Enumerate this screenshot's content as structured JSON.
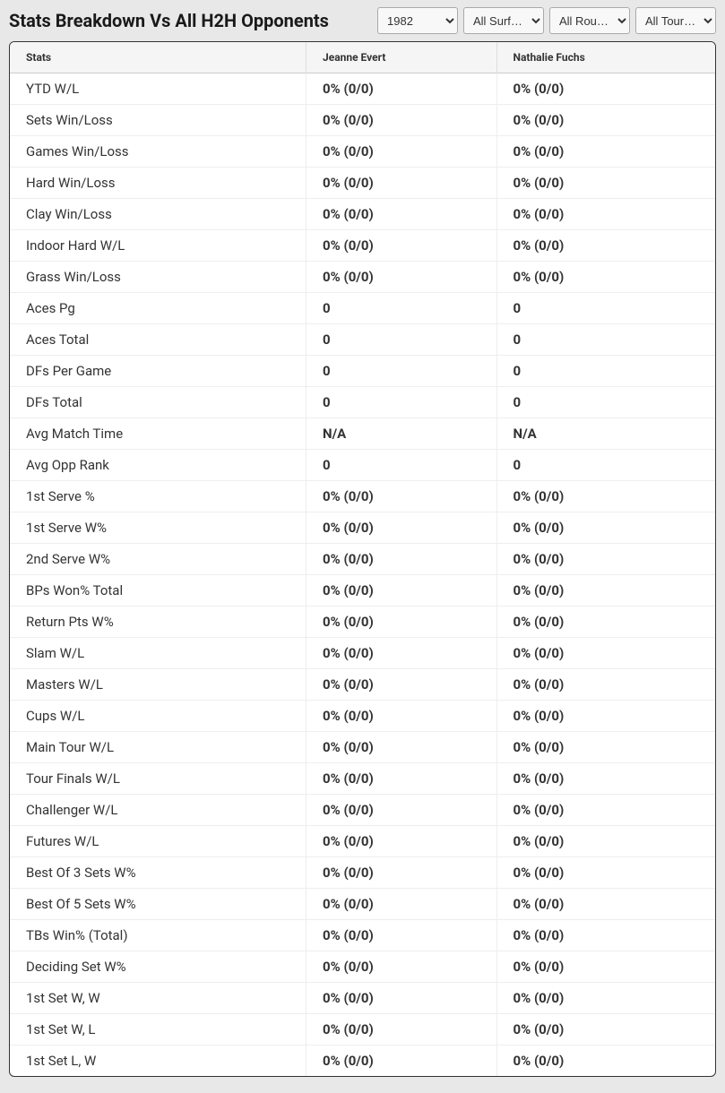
{
  "header": {
    "title": "Stats Breakdown Vs All H2H Opponents"
  },
  "filters": {
    "year": {
      "selected": "1982",
      "options": [
        "1982"
      ]
    },
    "surface": {
      "selected": "All Surf…",
      "options": [
        "All Surf…"
      ]
    },
    "round": {
      "selected": "All Rou…",
      "options": [
        "All Rou…"
      ]
    },
    "tour": {
      "selected": "All Tour…",
      "options": [
        "All Tour…"
      ]
    }
  },
  "table": {
    "columns": [
      "Stats",
      "Jeanne Evert",
      "Nathalie Fuchs"
    ],
    "rows": [
      {
        "stat": "YTD W/L",
        "p1": "0% (0/0)",
        "p2": "0% (0/0)"
      },
      {
        "stat": "Sets Win/Loss",
        "p1": "0% (0/0)",
        "p2": "0% (0/0)"
      },
      {
        "stat": "Games Win/Loss",
        "p1": "0% (0/0)",
        "p2": "0% (0/0)"
      },
      {
        "stat": "Hard Win/Loss",
        "p1": "0% (0/0)",
        "p2": "0% (0/0)"
      },
      {
        "stat": "Clay Win/Loss",
        "p1": "0% (0/0)",
        "p2": "0% (0/0)"
      },
      {
        "stat": "Indoor Hard W/L",
        "p1": "0% (0/0)",
        "p2": "0% (0/0)"
      },
      {
        "stat": "Grass Win/Loss",
        "p1": "0% (0/0)",
        "p2": "0% (0/0)"
      },
      {
        "stat": "Aces Pg",
        "p1": "0",
        "p2": "0"
      },
      {
        "stat": "Aces Total",
        "p1": "0",
        "p2": "0"
      },
      {
        "stat": "DFs Per Game",
        "p1": "0",
        "p2": "0"
      },
      {
        "stat": "DFs Total",
        "p1": "0",
        "p2": "0"
      },
      {
        "stat": "Avg Match Time",
        "p1": "N/A",
        "p2": "N/A"
      },
      {
        "stat": "Avg Opp Rank",
        "p1": "0",
        "p2": "0"
      },
      {
        "stat": "1st Serve %",
        "p1": "0% (0/0)",
        "p2": "0% (0/0)"
      },
      {
        "stat": "1st Serve W%",
        "p1": "0% (0/0)",
        "p2": "0% (0/0)"
      },
      {
        "stat": "2nd Serve W%",
        "p1": "0% (0/0)",
        "p2": "0% (0/0)"
      },
      {
        "stat": "BPs Won% Total",
        "p1": "0% (0/0)",
        "p2": "0% (0/0)"
      },
      {
        "stat": "Return Pts W%",
        "p1": "0% (0/0)",
        "p2": "0% (0/0)"
      },
      {
        "stat": "Slam W/L",
        "p1": "0% (0/0)",
        "p2": "0% (0/0)"
      },
      {
        "stat": "Masters W/L",
        "p1": "0% (0/0)",
        "p2": "0% (0/0)"
      },
      {
        "stat": "Cups W/L",
        "p1": "0% (0/0)",
        "p2": "0% (0/0)"
      },
      {
        "stat": "Main Tour W/L",
        "p1": "0% (0/0)",
        "p2": "0% (0/0)"
      },
      {
        "stat": "Tour Finals W/L",
        "p1": "0% (0/0)",
        "p2": "0% (0/0)"
      },
      {
        "stat": "Challenger W/L",
        "p1": "0% (0/0)",
        "p2": "0% (0/0)"
      },
      {
        "stat": "Futures W/L",
        "p1": "0% (0/0)",
        "p2": "0% (0/0)"
      },
      {
        "stat": "Best Of 3 Sets W%",
        "p1": "0% (0/0)",
        "p2": "0% (0/0)"
      },
      {
        "stat": "Best Of 5 Sets W%",
        "p1": "0% (0/0)",
        "p2": "0% (0/0)"
      },
      {
        "stat": "TBs Win% (Total)",
        "p1": "0% (0/0)",
        "p2": "0% (0/0)"
      },
      {
        "stat": "Deciding Set W%",
        "p1": "0% (0/0)",
        "p2": "0% (0/0)"
      },
      {
        "stat": "1st Set W, W",
        "p1": "0% (0/0)",
        "p2": "0% (0/0)"
      },
      {
        "stat": "1st Set W, L",
        "p1": "0% (0/0)",
        "p2": "0% (0/0)"
      },
      {
        "stat": "1st Set L, W",
        "p1": "0% (0/0)",
        "p2": "0% (0/0)"
      }
    ]
  },
  "styles": {
    "background_color": "#e8e8e8",
    "table_border_color": "#333",
    "header_bg": "#f5f5f5",
    "row_border_color": "#eee",
    "text_color": "#333",
    "title_fontsize": 20,
    "header_fontsize": 12,
    "cell_fontsize": 15
  }
}
